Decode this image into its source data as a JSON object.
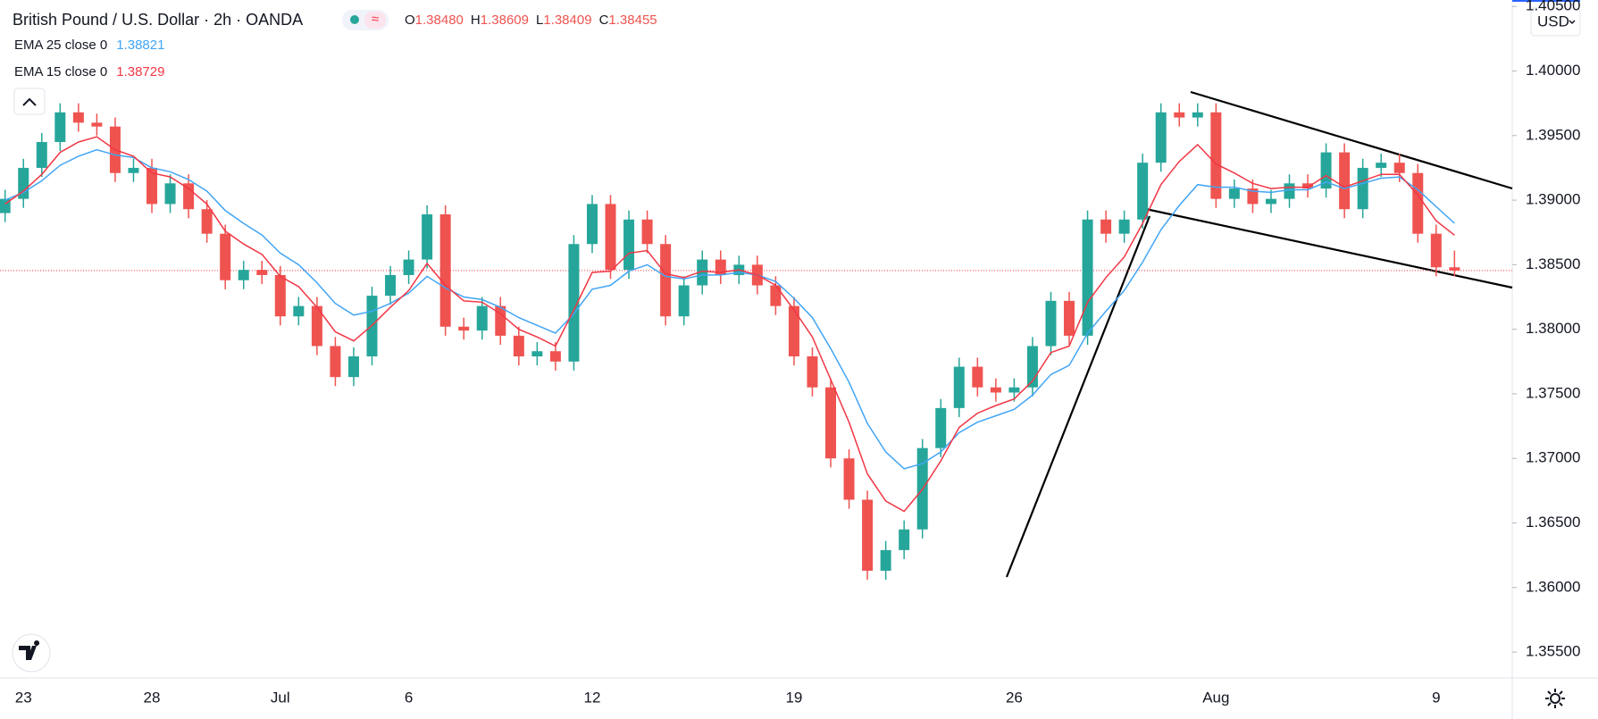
{
  "chart_data": {
    "type": "candlestick",
    "title": "British Pound / U.S. Dollar · 2h · OANDA",
    "last_bar_labels": [
      {
        "key": "O",
        "text": "1.38480"
      },
      {
        "key": "H",
        "text": "1.38609"
      },
      {
        "key": "L",
        "text": "1.38409"
      },
      {
        "key": "C",
        "text": "1.38455"
      }
    ],
    "currency": "USD",
    "categories": [
      null,
      "23",
      null,
      null,
      null,
      null,
      null,
      null,
      "28",
      null,
      null,
      null,
      null,
      null,
      null,
      "Jul",
      null,
      null,
      null,
      null,
      null,
      null,
      "6",
      null,
      null,
      null,
      null,
      null,
      null,
      null,
      null,
      null,
      "12",
      null,
      null,
      null,
      null,
      null,
      null,
      null,
      null,
      null,
      null,
      "19",
      null,
      null,
      null,
      null,
      null,
      null,
      null,
      null,
      null,
      null,
      null,
      "26",
      null,
      null,
      null,
      null,
      null,
      null,
      null,
      null,
      null,
      null,
      "Aug",
      null,
      null,
      null,
      null,
      null,
      null,
      null,
      null,
      null,
      null,
      null,
      "9",
      null
    ],
    "ohlc": [
      [
        1.389,
        1.3908,
        1.3883,
        1.3901
      ],
      [
        1.3901,
        1.3932,
        1.3894,
        1.3925
      ],
      [
        1.3925,
        1.3952,
        1.3918,
        1.3945
      ],
      [
        1.3945,
        1.3975,
        1.3938,
        1.3968
      ],
      [
        1.3968,
        1.3975,
        1.3953,
        1.396
      ],
      [
        1.396,
        1.3967,
        1.395,
        1.3957
      ],
      [
        1.3957,
        1.3964,
        1.3914,
        1.3921
      ],
      [
        1.3921,
        1.3932,
        1.3914,
        1.3925
      ],
      [
        1.3925,
        1.3932,
        1.389,
        1.3897
      ],
      [
        1.3897,
        1.392,
        1.389,
        1.3913
      ],
      [
        1.3913,
        1.392,
        1.3886,
        1.3893
      ],
      [
        1.3893,
        1.39,
        1.3867,
        1.3874
      ],
      [
        1.3874,
        1.3881,
        1.3831,
        1.3838
      ],
      [
        1.3838,
        1.3853,
        1.3831,
        1.3846
      ],
      [
        1.3846,
        1.3853,
        1.3835,
        1.3842
      ],
      [
        1.3842,
        1.3849,
        1.3803,
        1.381
      ],
      [
        1.381,
        1.3825,
        1.3803,
        1.3818
      ],
      [
        1.3818,
        1.3825,
        1.378,
        1.3787
      ],
      [
        1.3787,
        1.3794,
        1.3756,
        1.3763
      ],
      [
        1.3763,
        1.3786,
        1.3756,
        1.3779
      ],
      [
        1.3779,
        1.3833,
        1.3772,
        1.3826
      ],
      [
        1.3826,
        1.3849,
        1.3819,
        1.3842
      ],
      [
        1.3842,
        1.3861,
        1.3835,
        1.3854
      ],
      [
        1.3854,
        1.3896,
        1.3847,
        1.3889
      ],
      [
        1.3889,
        1.3896,
        1.3795,
        1.3802
      ],
      [
        1.3802,
        1.3809,
        1.3792,
        1.3799
      ],
      [
        1.3799,
        1.3825,
        1.3792,
        1.3818
      ],
      [
        1.3818,
        1.3825,
        1.3788,
        1.3795
      ],
      [
        1.3795,
        1.3802,
        1.3772,
        1.3779
      ],
      [
        1.3779,
        1.379,
        1.3772,
        1.3783
      ],
      [
        1.3783,
        1.379,
        1.3768,
        1.3775
      ],
      [
        1.3775,
        1.3873,
        1.3768,
        1.3866
      ],
      [
        1.3866,
        1.3904,
        1.3859,
        1.3897
      ],
      [
        1.3897,
        1.3904,
        1.3839,
        1.3846
      ],
      [
        1.3846,
        1.3892,
        1.3839,
        1.3885
      ],
      [
        1.3885,
        1.3892,
        1.3859,
        1.3866
      ],
      [
        1.3866,
        1.3873,
        1.3803,
        1.381
      ],
      [
        1.381,
        1.3841,
        1.3803,
        1.3834
      ],
      [
        1.3834,
        1.3861,
        1.3827,
        1.3854
      ],
      [
        1.3854,
        1.3861,
        1.3835,
        1.3842
      ],
      [
        1.3842,
        1.3857,
        1.3835,
        1.385
      ],
      [
        1.385,
        1.3857,
        1.3827,
        1.3834
      ],
      [
        1.3834,
        1.3841,
        1.3811,
        1.3818
      ],
      [
        1.3818,
        1.3825,
        1.3772,
        1.3779
      ],
      [
        1.3779,
        1.3786,
        1.3748,
        1.3755
      ],
      [
        1.3755,
        1.3762,
        1.3693,
        1.37
      ],
      [
        1.37,
        1.3707,
        1.3661,
        1.3668
      ],
      [
        1.3668,
        1.3675,
        1.3606,
        1.3613
      ],
      [
        1.3613,
        1.3636,
        1.3606,
        1.3629
      ],
      [
        1.3629,
        1.3652,
        1.3622,
        1.3645
      ],
      [
        1.3645,
        1.3715,
        1.3638,
        1.3708
      ],
      [
        1.3708,
        1.3746,
        1.3701,
        1.3739
      ],
      [
        1.3739,
        1.3778,
        1.3732,
        1.3771
      ],
      [
        1.3771,
        1.3778,
        1.3748,
        1.3755
      ],
      [
        1.3755,
        1.3762,
        1.3744,
        1.3751
      ],
      [
        1.3751,
        1.3762,
        1.3744,
        1.3755
      ],
      [
        1.3755,
        1.3794,
        1.3748,
        1.3787
      ],
      [
        1.3787,
        1.3829,
        1.378,
        1.3822
      ],
      [
        1.3822,
        1.3829,
        1.3788,
        1.3795
      ],
      [
        1.3795,
        1.3892,
        1.3788,
        1.3885
      ],
      [
        1.3885,
        1.3892,
        1.3867,
        1.3874
      ],
      [
        1.3874,
        1.3892,
        1.3867,
        1.3885
      ],
      [
        1.3885,
        1.3936,
        1.3878,
        1.3929
      ],
      [
        1.3929,
        1.3975,
        1.3922,
        1.3968
      ],
      [
        1.3968,
        1.3975,
        1.3957,
        1.3964
      ],
      [
        1.3964,
        1.3975,
        1.3957,
        1.3968
      ],
      [
        1.3968,
        1.3975,
        1.3894,
        1.3901
      ],
      [
        1.3901,
        1.3916,
        1.3894,
        1.3909
      ],
      [
        1.3909,
        1.3916,
        1.389,
        1.3897
      ],
      [
        1.3897,
        1.3908,
        1.389,
        1.3901
      ],
      [
        1.3901,
        1.392,
        1.3894,
        1.3913
      ],
      [
        1.3913,
        1.392,
        1.3902,
        1.3909
      ],
      [
        1.3909,
        1.3944,
        1.3902,
        1.3937
      ],
      [
        1.3937,
        1.3944,
        1.3886,
        1.3893
      ],
      [
        1.3893,
        1.3932,
        1.3886,
        1.3925
      ],
      [
        1.3925,
        1.3936,
        1.3918,
        1.3929
      ],
      [
        1.3929,
        1.3936,
        1.3914,
        1.3921
      ],
      [
        1.3921,
        1.3928,
        1.3867,
        1.3874
      ],
      [
        1.3874,
        1.3881,
        1.3841,
        1.3848
      ],
      [
        1.3848,
        1.38609,
        1.38409,
        1.38455
      ]
    ],
    "up_color": "#26a69a",
    "down_color": "#ef5350",
    "series": [
      {
        "name": "EMA 25 close 0",
        "color": "#42a5f5",
        "values": [
          1.39,
          1.3906,
          1.3915,
          1.3927,
          1.3934,
          1.3939,
          1.3935,
          1.3933,
          1.3925,
          1.3922,
          1.3916,
          1.3907,
          1.3892,
          1.3882,
          1.3873,
          1.3859,
          1.385,
          1.3836,
          1.382,
          1.3811,
          1.3814,
          1.382,
          1.3828,
          1.3841,
          1.3832,
          1.3825,
          1.3823,
          1.3817,
          1.3809,
          1.3803,
          1.3797,
          1.3812,
          1.3831,
          1.3834,
          1.3845,
          1.385,
          1.3841,
          1.3839,
          1.3842,
          1.3842,
          1.3844,
          1.3842,
          1.3837,
          1.3824,
          1.3809,
          1.3785,
          1.3759,
          1.3727,
          1.3705,
          1.3692,
          1.3696,
          1.3705,
          1.372,
          1.3728,
          1.3733,
          1.3738,
          1.3749,
          1.3765,
          1.3772,
          1.3797,
          1.3814,
          1.383,
          1.3852,
          1.3877,
          1.3896,
          1.3912,
          1.391,
          1.391,
          1.3907,
          1.3906,
          1.3908,
          1.3908,
          1.3914,
          1.3909,
          1.3913,
          1.3917,
          1.3918,
          1.3908,
          1.3895,
          1.38821
        ]
      },
      {
        "name": "EMA 15 close 0",
        "color": "#f23645",
        "values": [
          1.3897,
          1.3907,
          1.392,
          1.3937,
          1.3945,
          1.3949,
          1.3939,
          1.3934,
          1.3921,
          1.3918,
          1.3909,
          1.3897,
          1.3876,
          1.3866,
          1.3858,
          1.3841,
          1.3833,
          1.3817,
          1.3798,
          1.3791,
          1.3803,
          1.3817,
          1.383,
          1.3851,
          1.3834,
          1.3822,
          1.3821,
          1.3812,
          1.38,
          1.3794,
          1.3787,
          1.3815,
          1.3844,
          1.3845,
          1.3859,
          1.3861,
          1.3843,
          1.384,
          1.3845,
          1.3844,
          1.3846,
          1.3842,
          1.3834,
          1.3815,
          1.3794,
          1.3761,
          1.3728,
          1.3688,
          1.3667,
          1.3659,
          1.3676,
          1.3698,
          1.3724,
          1.3735,
          1.3741,
          1.3746,
          1.376,
          1.3782,
          1.3787,
          1.3821,
          1.384,
          1.3856,
          1.3882,
          1.3912,
          1.393,
          1.3943,
          1.3928,
          1.3921,
          1.3913,
          1.3909,
          1.391,
          1.391,
          1.3919,
          1.391,
          1.3915,
          1.392,
          1.392,
          1.3904,
          1.3884,
          1.38729
        ]
      }
    ],
    "last_price": 1.38455,
    "last_price_color": "#f23645",
    "ylim": [
      1.353,
      1.4055
    ],
    "yticks": [
      {
        "value": 1.355,
        "label": "1.35500"
      },
      {
        "value": 1.36,
        "label": "1.36000"
      },
      {
        "value": 1.365,
        "label": "1.36500"
      },
      {
        "value": 1.37,
        "label": "1.37000"
      },
      {
        "value": 1.375,
        "label": "1.37500"
      },
      {
        "value": 1.38,
        "label": "1.38000"
      },
      {
        "value": 1.385,
        "label": "1.38500"
      },
      {
        "value": 1.39,
        "label": "1.39000"
      },
      {
        "value": 1.395,
        "label": "1.39500"
      },
      {
        "value": 1.4,
        "label": "1.40000"
      },
      {
        "value": 1.405,
        "label": "1.40500"
      }
    ],
    "grid": false
  }
}
